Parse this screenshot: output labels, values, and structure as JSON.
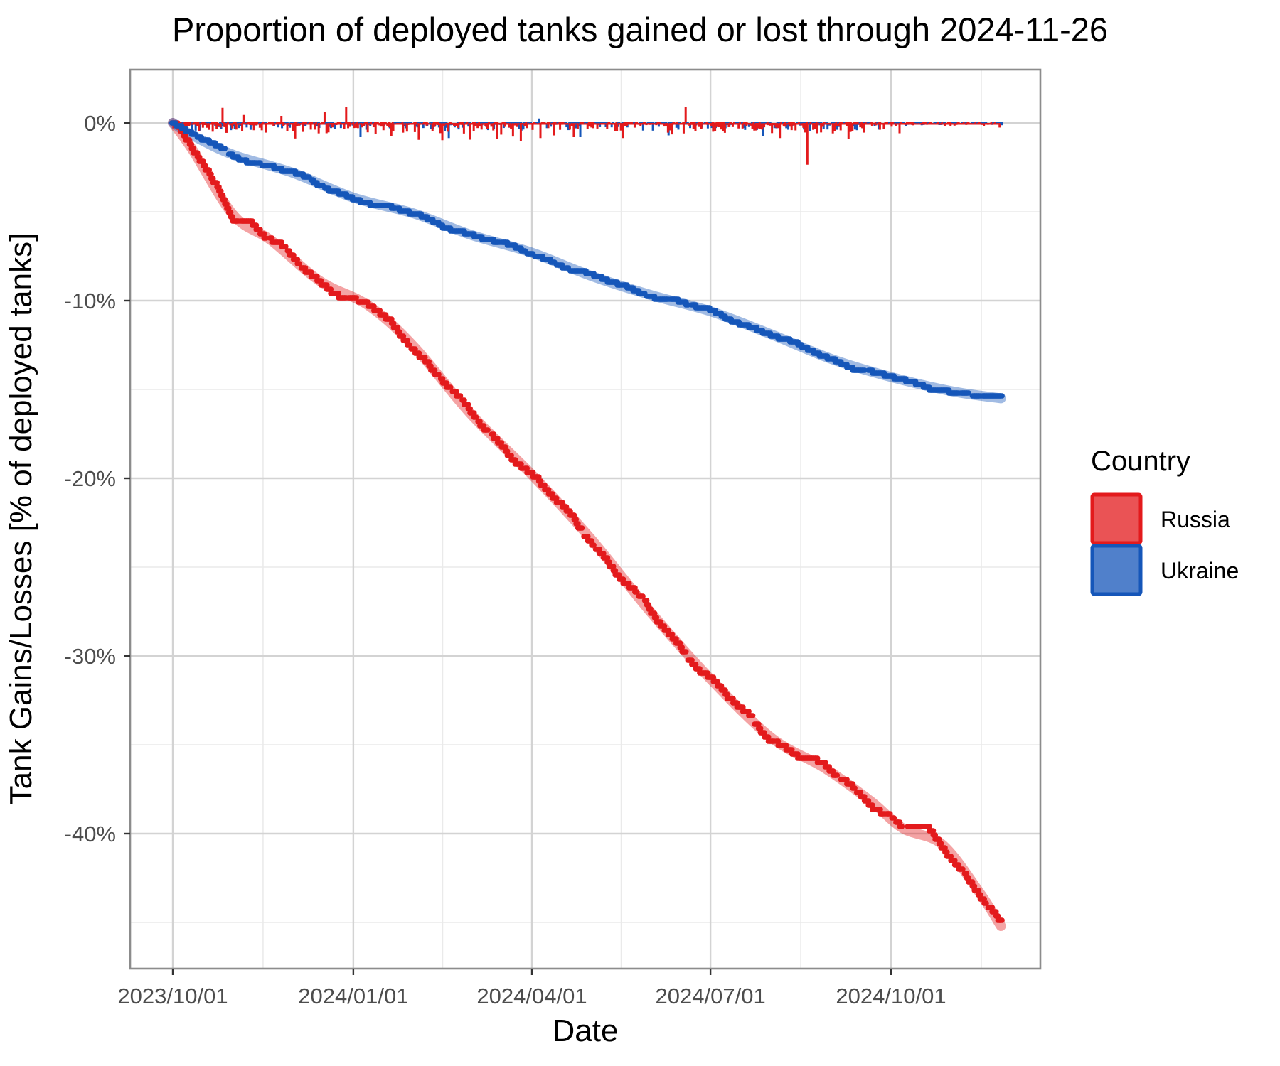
{
  "title": "Proportion of deployed tanks gained or lost through 2024-11-26",
  "x_axis": {
    "title": "Date",
    "ticks": [
      {
        "label": "2023/10/01",
        "day": 0
      },
      {
        "label": "2024/01/01",
        "day": 92
      },
      {
        "label": "2024/04/01",
        "day": 183
      },
      {
        "label": "2024/07/01",
        "day": 274
      },
      {
        "label": "2024/10/01",
        "day": 366
      }
    ]
  },
  "y_axis": {
    "title": "Tank Gains/Losses [% of deployed tanks]",
    "ticks": [
      {
        "label": "0%",
        "value": 0
      },
      {
        "label": "-10%",
        "value": -10
      },
      {
        "label": "-20%",
        "value": -20
      },
      {
        "label": "-30%",
        "value": -30
      },
      {
        "label": "-40%",
        "value": -40
      }
    ]
  },
  "legend": {
    "title": "Country",
    "items": [
      {
        "label": "Russia",
        "color": "#E31A1C"
      },
      {
        "label": "Ukraine",
        "color": "#1556B9"
      }
    ]
  },
  "colors": {
    "russia_point": "#E31A1C",
    "russia_smooth": "#E31A1C",
    "ukraine_point": "#1556B9",
    "ukraine_smooth": "#1556B9",
    "smooth_alpha": 0.4,
    "grid_major": "#D3D3D3",
    "grid_minor": "#EAEAEA",
    "panel_border": "#8C8C8C",
    "tick_mark": "#333333",
    "tick_text": "#4D4D4D"
  },
  "chart_data": {
    "type": "line",
    "title": "Proportion of deployed tanks gained or lost through 2024-11-26",
    "xlabel": "Date",
    "ylabel": "Tank Gains/Losses [% of deployed tanks]",
    "x_range": [
      "2023/10/01",
      "2024/11/26"
    ],
    "ylim_shown": [
      -47.6,
      3.3
    ],
    "grid": true,
    "legend_position": "right",
    "start_date": "2023-10-01",
    "end_day": 422,
    "series": [
      {
        "name": "Russia",
        "kind": "cumulative_points_with_loess",
        "end_value_pct": -45.2,
        "anchors_day_pct": [
          [
            0,
            0
          ],
          [
            5,
            -0.6
          ],
          [
            10,
            -1.5
          ],
          [
            20,
            -3.2
          ],
          [
            31,
            -5.2
          ],
          [
            40,
            -5.6
          ],
          [
            50,
            -6.6
          ],
          [
            61,
            -7.6
          ],
          [
            75,
            -8.9
          ],
          [
            92,
            -10.0
          ],
          [
            100,
            -10.3
          ],
          [
            110,
            -11.2
          ],
          [
            123,
            -12.6
          ],
          [
            137,
            -14.4
          ],
          [
            152,
            -16.4
          ],
          [
            167,
            -18.0
          ],
          [
            183,
            -19.8
          ],
          [
            198,
            -21.6
          ],
          [
            213,
            -23.4
          ],
          [
            228,
            -25.5
          ],
          [
            244,
            -27.6
          ],
          [
            259,
            -29.5
          ],
          [
            274,
            -31.3
          ],
          [
            289,
            -33.0
          ],
          [
            305,
            -34.6
          ],
          [
            318,
            -35.5
          ],
          [
            332,
            -36.3
          ],
          [
            345,
            -37.2
          ],
          [
            356,
            -38.2
          ],
          [
            366,
            -39.1
          ],
          [
            372,
            -39.7
          ],
          [
            385,
            -39.8
          ],
          [
            392,
            -40.6
          ],
          [
            400,
            -41.7
          ],
          [
            411,
            -43.3
          ],
          [
            417,
            -44.3
          ],
          [
            422,
            -45.2
          ]
        ]
      },
      {
        "name": "Ukraine",
        "kind": "cumulative_points_with_loess",
        "end_value_pct": -15.5,
        "anchors_day_pct": [
          [
            0,
            0
          ],
          [
            4,
            -0.3
          ],
          [
            10,
            -0.7
          ],
          [
            19,
            -1.1
          ],
          [
            31,
            -1.8
          ],
          [
            45,
            -2.3
          ],
          [
            61,
            -2.8
          ],
          [
            75,
            -3.5
          ],
          [
            92,
            -4.2
          ],
          [
            106,
            -4.7
          ],
          [
            123,
            -5.1
          ],
          [
            137,
            -5.7
          ],
          [
            152,
            -6.3
          ],
          [
            167,
            -6.8
          ],
          [
            183,
            -7.3
          ],
          [
            198,
            -8.0
          ],
          [
            213,
            -8.6
          ],
          [
            228,
            -9.1
          ],
          [
            244,
            -9.7
          ],
          [
            259,
            -10.1
          ],
          [
            274,
            -10.6
          ],
          [
            289,
            -11.2
          ],
          [
            305,
            -11.9
          ],
          [
            320,
            -12.6
          ],
          [
            336,
            -13.3
          ],
          [
            351,
            -13.9
          ],
          [
            366,
            -14.3
          ],
          [
            381,
            -14.8
          ],
          [
            397,
            -15.1
          ],
          [
            410,
            -15.3
          ],
          [
            422,
            -15.5
          ]
        ]
      }
    ],
    "daily_bars": {
      "description": "small daily gain/loss bars hanging from the 0% line, one red and one blue per day, mostly 0 to -0.7%",
      "typical_range_pct": [
        0.0,
        -0.7
      ],
      "notable_spikes_day_country_pct": [
        [
          26,
          "Russia",
          0.85
        ],
        [
          37,
          "Russia",
          0.45
        ],
        [
          56,
          "Russia",
          0.4
        ],
        [
          78,
          "Russia",
          0.6
        ],
        [
          89,
          "Russia",
          0.9
        ],
        [
          262,
          "Russia",
          0.9
        ],
        [
          324,
          "Russia",
          -2.35
        ],
        [
          126,
          "Russia",
          -0.95
        ],
        [
          166,
          "Russia",
          -0.9
        ],
        [
          178,
          "Russia",
          -1.0
        ],
        [
          188,
          "Russia",
          -0.85
        ],
        [
          205,
          "Russia",
          -0.8
        ],
        [
          230,
          "Russia",
          -0.85
        ],
        [
          310,
          "Russia",
          -0.85
        ],
        [
          345,
          "Russia",
          -0.9
        ],
        [
          95,
          "Ukraine",
          -0.8
        ],
        [
          140,
          "Ukraine",
          -0.85
        ],
        [
          186,
          "Ukraine",
          0.25
        ],
        [
          207,
          "Ukraine",
          -0.8
        ],
        [
          252,
          "Ukraine",
          -0.7
        ],
        [
          300,
          "Ukraine",
          -0.75
        ]
      ]
    }
  }
}
